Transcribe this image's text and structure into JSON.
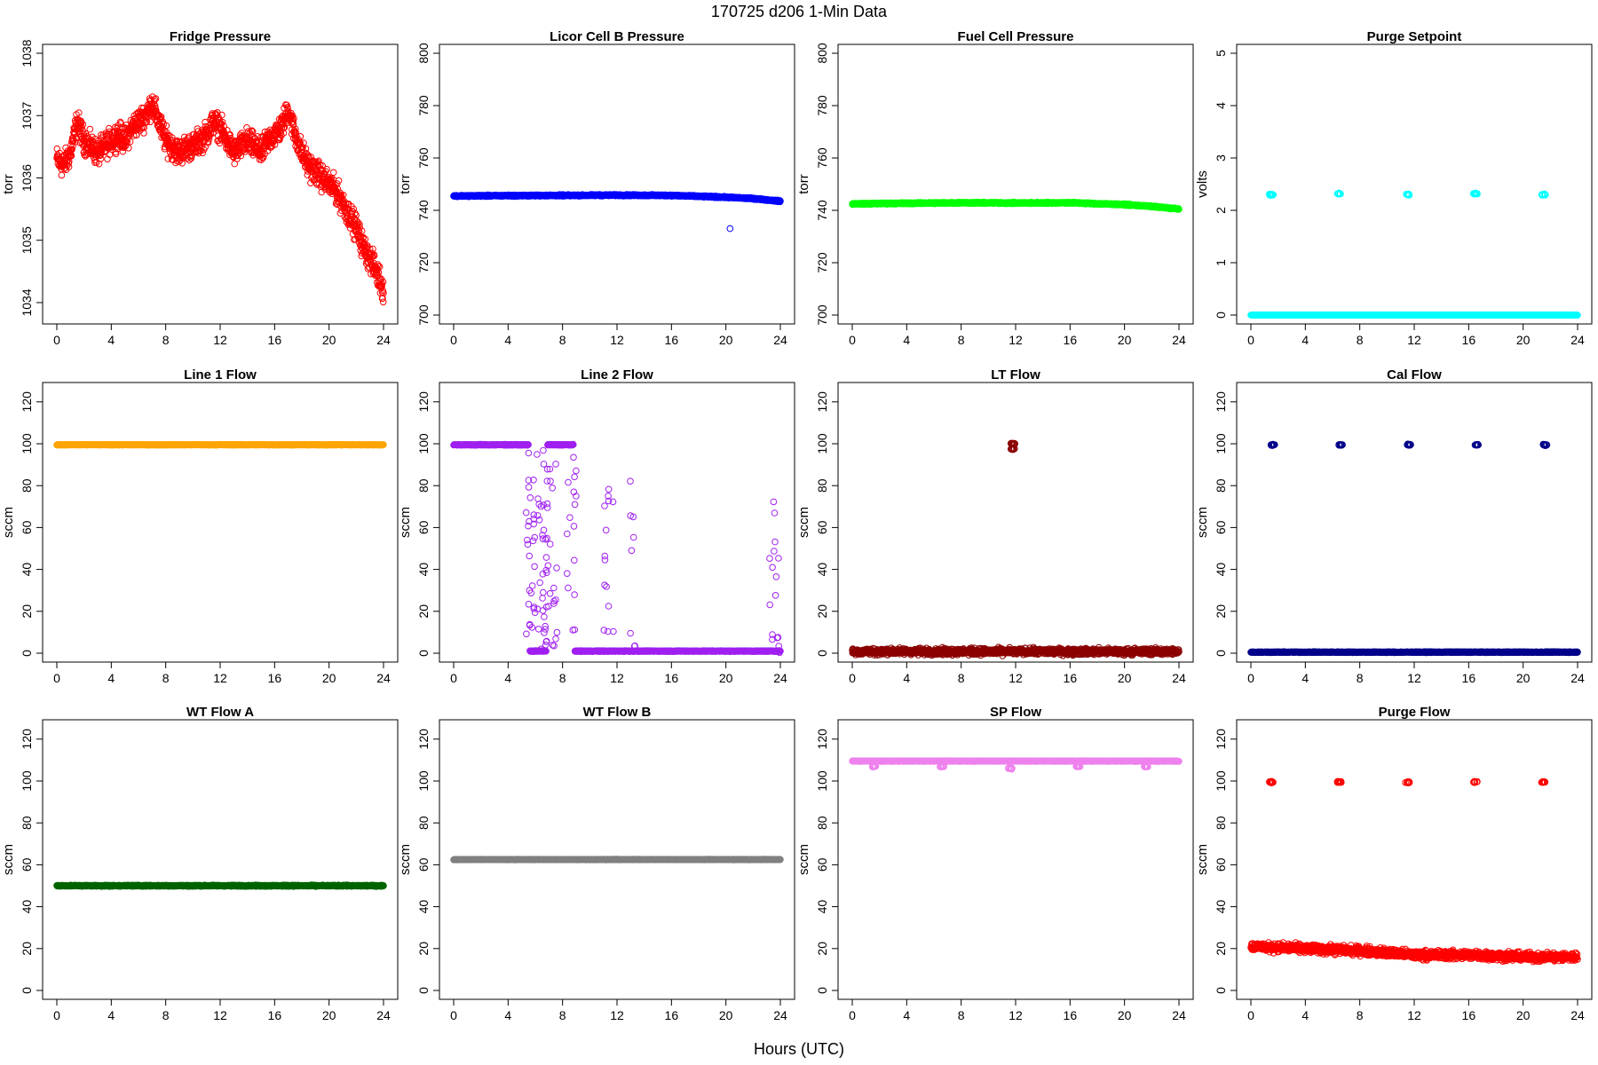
{
  "figure": {
    "title": "170725    d206    1-Min Data",
    "xlabel": "Hours (UTC)"
  },
  "chart_data": [
    {
      "type": "scatter",
      "title": "Fridge Pressure",
      "ylabel": "torr",
      "color": "#ff0000",
      "xlim": [
        0,
        24
      ],
      "ylim": [
        1033.8,
        1038
      ],
      "xticks": [
        0,
        4,
        8,
        12,
        16,
        20,
        24
      ],
      "yticks": [
        1034,
        1035,
        1036,
        1037,
        1038
      ],
      "x": [
        0,
        0.5,
        1,
        1.5,
        2,
        2.5,
        3,
        3.5,
        4,
        4.5,
        5,
        5.5,
        6,
        6.5,
        7,
        7.5,
        8,
        8.5,
        9,
        9.5,
        10,
        10.5,
        11,
        11.5,
        12,
        12.5,
        13,
        13.5,
        14,
        14.5,
        15,
        15.5,
        16,
        16.5,
        17,
        17.5,
        18,
        18.5,
        19,
        19.5,
        20,
        20.5,
        21,
        21.5,
        22,
        22.5,
        23,
        23.5,
        24
      ],
      "y": [
        1036.3,
        1036.2,
        1036.4,
        1036.9,
        1036.6,
        1036.5,
        1036.4,
        1036.5,
        1036.6,
        1036.7,
        1036.6,
        1036.8,
        1036.9,
        1037.0,
        1037.2,
        1036.9,
        1036.6,
        1036.5,
        1036.4,
        1036.5,
        1036.5,
        1036.6,
        1036.7,
        1036.9,
        1036.8,
        1036.6,
        1036.4,
        1036.5,
        1036.6,
        1036.5,
        1036.4,
        1036.6,
        1036.7,
        1036.8,
        1037.1,
        1036.7,
        1036.4,
        1036.2,
        1036.1,
        1036.0,
        1035.9,
        1035.8,
        1035.6,
        1035.4,
        1035.2,
        1034.9,
        1034.7,
        1034.5,
        1034.2
      ],
      "spread": 0.3,
      "n": 1440
    },
    {
      "type": "scatter",
      "title": "Licor Cell B Pressure",
      "ylabel": "torr",
      "color": "#0000ff",
      "xlim": [
        0,
        24
      ],
      "ylim": [
        700,
        800
      ],
      "xticks": [
        0,
        4,
        8,
        12,
        16,
        20,
        24
      ],
      "yticks": [
        700,
        720,
        740,
        760,
        780,
        800
      ],
      "x": [
        0,
        4,
        8,
        12,
        16,
        20,
        22,
        24
      ],
      "y": [
        745.5,
        745.6,
        745.7,
        745.8,
        745.7,
        745.0,
        744.5,
        743.5
      ],
      "spread": 0.4,
      "n": 1440,
      "outliers": [
        [
          20.3,
          733
        ]
      ]
    },
    {
      "type": "scatter",
      "title": "Fuel Cell Pressure",
      "ylabel": "torr",
      "color": "#00ff00",
      "xlim": [
        0,
        24
      ],
      "ylim": [
        700,
        800
      ],
      "xticks": [
        0,
        4,
        8,
        12,
        16,
        20,
        24
      ],
      "yticks": [
        700,
        720,
        740,
        760,
        780,
        800
      ],
      "x": [
        0,
        4,
        8,
        12,
        16,
        20,
        22,
        24
      ],
      "y": [
        742.5,
        742.7,
        742.9,
        742.8,
        742.9,
        742.2,
        741.5,
        740.5
      ],
      "spread": 0.4,
      "n": 1440
    },
    {
      "type": "scatter",
      "title": "Purge Setpoint",
      "ylabel": "volts",
      "color": "#00ffff",
      "xlim": [
        0,
        24
      ],
      "ylim": [
        0,
        5
      ],
      "xticks": [
        0,
        4,
        8,
        12,
        16,
        20,
        24
      ],
      "yticks": [
        0,
        1,
        2,
        3,
        4,
        5
      ],
      "x": [
        0,
        24
      ],
      "y": [
        0,
        0
      ],
      "spread": 0,
      "n": 1440,
      "clusters": [
        [
          1.5,
          2.3
        ],
        [
          6.5,
          2.32
        ],
        [
          11.5,
          2.3
        ],
        [
          16.5,
          2.32
        ],
        [
          21.5,
          2.3
        ]
      ]
    },
    {
      "type": "scatter",
      "title": "Line 1 Flow",
      "ylabel": "sccm",
      "color": "#ffa500",
      "xlim": [
        0,
        24
      ],
      "ylim": [
        0,
        125
      ],
      "xticks": [
        0,
        4,
        8,
        12,
        16,
        20,
        24
      ],
      "yticks": [
        0,
        20,
        40,
        60,
        80,
        100,
        120
      ],
      "x": [
        0,
        24
      ],
      "y": [
        99.5,
        99.5
      ],
      "spread": 0.2,
      "n": 1440
    },
    {
      "type": "scatter",
      "title": "Line 2 Flow",
      "ylabel": "sccm",
      "color": "#a020f0",
      "xlim": [
        0,
        24
      ],
      "ylim": [
        0,
        125
      ],
      "xticks": [
        0,
        4,
        8,
        12,
        16,
        20,
        24
      ],
      "yticks": [
        0,
        20,
        40,
        60,
        80,
        100,
        120
      ],
      "x": [
        0,
        5.5,
        5.6,
        6.8,
        6.9,
        8.8,
        8.9,
        24
      ],
      "y": [
        99.5,
        99.5,
        1,
        1,
        99.5,
        99.5,
        1,
        1
      ],
      "spread": 0.3,
      "n": 1440,
      "scatter_ranges": [
        [
          5.3,
          7.6,
          0,
          100,
          70
        ],
        [
          8.3,
          9.0,
          0,
          90,
          10
        ],
        [
          11.0,
          11.8,
          0,
          80,
          14
        ],
        [
          12.9,
          13.4,
          0,
          85,
          8
        ],
        [
          23.2,
          24,
          0,
          75,
          16
        ]
      ]
    },
    {
      "type": "scatter",
      "title": "LT Flow",
      "ylabel": "sccm",
      "color": "#8b0000",
      "xlim": [
        0,
        24
      ],
      "ylim": [
        0,
        125
      ],
      "xticks": [
        0,
        4,
        8,
        12,
        16,
        20,
        24
      ],
      "yticks": [
        0,
        20,
        40,
        60,
        80,
        100,
        120
      ],
      "x": [
        0,
        24
      ],
      "y": [
        0.8,
        0.8
      ],
      "spread": 2.2,
      "n": 1440,
      "clusters": [
        [
          11.8,
          100
        ],
        [
          11.8,
          97.5
        ]
      ]
    },
    {
      "type": "scatter",
      "title": "Cal Flow",
      "ylabel": "sccm",
      "color": "#00008b",
      "xlim": [
        0,
        24
      ],
      "ylim": [
        0,
        125
      ],
      "xticks": [
        0,
        4,
        8,
        12,
        16,
        20,
        24
      ],
      "yticks": [
        0,
        20,
        40,
        60,
        80,
        100,
        120
      ],
      "x": [
        0,
        24
      ],
      "y": [
        0.5,
        0.5
      ],
      "spread": 0.3,
      "n": 1440,
      "clusters": [
        [
          1.6,
          99.5
        ],
        [
          6.6,
          99.5
        ],
        [
          11.6,
          99.5
        ],
        [
          16.6,
          99.5
        ],
        [
          21.6,
          99.5
        ]
      ]
    },
    {
      "type": "scatter",
      "title": "WT Flow A",
      "ylabel": "sccm",
      "color": "#006400",
      "xlim": [
        0,
        24
      ],
      "ylim": [
        0,
        125
      ],
      "xticks": [
        0,
        4,
        8,
        12,
        16,
        20,
        24
      ],
      "yticks": [
        0,
        20,
        40,
        60,
        80,
        100,
        120
      ],
      "x": [
        0,
        24
      ],
      "y": [
        50,
        50
      ],
      "spread": 0.4,
      "n": 1440
    },
    {
      "type": "scatter",
      "title": "WT Flow B",
      "ylabel": "sccm",
      "color": "#808080",
      "xlim": [
        0,
        24
      ],
      "ylim": [
        0,
        125
      ],
      "xticks": [
        0,
        4,
        8,
        12,
        16,
        20,
        24
      ],
      "yticks": [
        0,
        20,
        40,
        60,
        80,
        100,
        120
      ],
      "x": [
        0,
        24
      ],
      "y": [
        62.5,
        62.5
      ],
      "spread": 0.2,
      "n": 1440
    },
    {
      "type": "scatter",
      "title": "SP Flow",
      "ylabel": "sccm",
      "color": "#ee82ee",
      "xlim": [
        0,
        24
      ],
      "ylim": [
        0,
        125
      ],
      "xticks": [
        0,
        4,
        8,
        12,
        16,
        20,
        24
      ],
      "yticks": [
        0,
        20,
        40,
        60,
        80,
        100,
        120
      ],
      "x": [
        0,
        24
      ],
      "y": [
        109.5,
        109.5
      ],
      "spread": 0.2,
      "n": 1440,
      "clusters": [
        [
          1.6,
          107
        ],
        [
          6.6,
          107
        ],
        [
          11.6,
          106
        ],
        [
          16.6,
          107
        ],
        [
          21.6,
          107
        ]
      ]
    },
    {
      "type": "scatter",
      "title": "Purge Flow",
      "ylabel": "sccm",
      "color": "#ff0000",
      "xlim": [
        0,
        24
      ],
      "ylim": [
        0,
        125
      ],
      "xticks": [
        0,
        4,
        8,
        12,
        16,
        20,
        24
      ],
      "yticks": [
        0,
        20,
        40,
        60,
        80,
        100,
        120
      ],
      "x": [
        0,
        4,
        8,
        12,
        16,
        20,
        24
      ],
      "y": [
        21,
        20,
        19,
        17,
        17,
        16,
        16
      ],
      "spread": 3,
      "n": 1440,
      "clusters": [
        [
          1.5,
          99.5
        ],
        [
          6.5,
          99.5
        ],
        [
          11.5,
          99.5
        ],
        [
          16.5,
          99.5
        ],
        [
          21.5,
          99.5
        ]
      ]
    }
  ]
}
